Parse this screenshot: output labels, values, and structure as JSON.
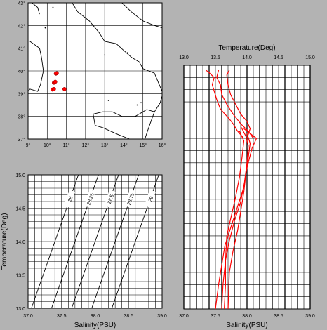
{
  "colors": {
    "background": "#b3b3b3",
    "plot_bg": "#ffffff",
    "profile": "#ff0000",
    "grid": "#000000"
  },
  "chart_data": [
    {
      "type": "map",
      "xlim": [
        9,
        16
      ],
      "ylim": [
        37,
        43
      ],
      "x_ticks": [
        "9°",
        "10°",
        "11°",
        "12°",
        "13°",
        "14°",
        "15°",
        "16°"
      ],
      "y_ticks": [
        "37°",
        "38°",
        "39°",
        "40°",
        "41°",
        "42°",
        "43°"
      ],
      "stations": [
        {
          "lon": 10.45,
          "lat": 39.88
        },
        {
          "lon": 10.5,
          "lat": 39.9
        },
        {
          "lon": 10.35,
          "lat": 39.48
        },
        {
          "lon": 10.42,
          "lat": 39.52
        },
        {
          "lon": 10.28,
          "lat": 39.18
        },
        {
          "lon": 10.35,
          "lat": 39.2
        },
        {
          "lon": 10.9,
          "lat": 39.2
        }
      ]
    },
    {
      "type": "line",
      "title": "Temperature(Deg)",
      "xlabel": "Salinity(PSU)",
      "xlim": [
        13.0,
        15.0
      ],
      "secondary_xlim": [
        37.0,
        39.0
      ],
      "top_ticks": [
        "13.0",
        "13.5",
        "14.0",
        "14.5",
        "15.0"
      ],
      "bottom_ticks": [
        "37.0",
        "37.5",
        "38.0",
        "38.5",
        "39.0"
      ],
      "depth_range": [
        0,
        1
      ],
      "series": [
        {
          "temp_profile": [
            [
              13.35,
              0.02
            ],
            [
              13.4,
              0.03
            ],
            [
              13.48,
              0.05
            ],
            [
              13.45,
              0.08
            ],
            [
              13.52,
              0.14
            ],
            [
              13.58,
              0.18
            ],
            [
              13.65,
              0.2
            ],
            [
              13.72,
              0.22
            ],
            [
              13.78,
              0.24
            ],
            [
              13.85,
              0.27
            ],
            [
              13.95,
              0.3
            ]
          ]
        },
        {
          "temp_profile": [
            [
              13.55,
              0.02
            ],
            [
              13.52,
              0.05
            ],
            [
              13.58,
              0.08
            ],
            [
              13.6,
              0.12
            ],
            [
              13.68,
              0.16
            ],
            [
              13.78,
              0.2
            ],
            [
              13.9,
              0.24
            ],
            [
              14.02,
              0.27
            ],
            [
              14.1,
              0.3
            ]
          ]
        },
        {
          "temp_profile": [
            [
              13.72,
              0.02
            ],
            [
              13.68,
              0.04
            ],
            [
              13.7,
              0.08
            ],
            [
              13.74,
              0.12
            ],
            [
              13.82,
              0.16
            ],
            [
              13.9,
              0.2
            ],
            [
              14.0,
              0.23
            ],
            [
              14.05,
              0.26
            ],
            [
              14.0,
              0.3
            ]
          ]
        },
        {
          "sal_profile": [
            [
              37.95,
              0.26
            ],
            [
              38.05,
              0.28
            ],
            [
              38.15,
              0.3
            ],
            [
              38.08,
              0.34
            ],
            [
              38.0,
              0.42
            ],
            [
              37.95,
              0.5
            ],
            [
              37.85,
              0.58
            ],
            [
              37.75,
              0.66
            ],
            [
              37.65,
              0.74
            ],
            [
              37.6,
              0.82
            ],
            [
              37.55,
              0.9
            ],
            [
              37.5,
              1.0
            ]
          ]
        },
        {
          "sal_profile": [
            [
              37.9,
              0.25
            ],
            [
              37.98,
              0.29
            ],
            [
              38.02,
              0.33
            ],
            [
              38.0,
              0.4
            ],
            [
              37.96,
              0.48
            ],
            [
              37.9,
              0.56
            ],
            [
              37.8,
              0.64
            ],
            [
              37.72,
              0.72
            ],
            [
              37.66,
              0.8
            ],
            [
              37.62,
              0.9
            ],
            [
              37.6,
              1.0
            ]
          ]
        },
        {
          "sal_profile": [
            [
              37.88,
              0.27
            ],
            [
              37.95,
              0.31
            ],
            [
              37.92,
              0.38
            ],
            [
              37.88,
              0.46
            ],
            [
              37.82,
              0.54
            ],
            [
              37.75,
              0.62
            ],
            [
              37.68,
              0.7
            ],
            [
              37.66,
              0.8
            ],
            [
              37.66,
              0.9
            ],
            [
              37.64,
              1.0
            ]
          ]
        },
        {
          "sal_profile": [
            [
              38.0,
              0.28
            ],
            [
              38.05,
              0.32
            ],
            [
              38.02,
              0.38
            ],
            [
              37.98,
              0.45
            ],
            [
              37.95,
              0.52
            ],
            [
              37.9,
              0.6
            ],
            [
              37.85,
              0.68
            ],
            [
              37.78,
              0.76
            ],
            [
              37.72,
              0.85
            ],
            [
              37.7,
              1.0
            ]
          ]
        }
      ]
    },
    {
      "type": "line",
      "xlabel": "Salinity(PSU)",
      "ylabel": "Temperature(Deg)",
      "xlim": [
        37.0,
        39.0
      ],
      "ylim": [
        13.0,
        15.0
      ],
      "x_ticks": [
        "37.0",
        "37.5",
        "38.0",
        "38.5",
        "39.0"
      ],
      "y_ticks": [
        "13.0",
        "13.5",
        "14.0",
        "14.5",
        "15.0"
      ],
      "isopycnals": [
        {
          "label": "28",
          "x0": 37.05,
          "x1": 37.75
        },
        {
          "label": "28.25",
          "x0": 37.35,
          "x1": 38.05
        },
        {
          "label": "28.5",
          "x0": 37.65,
          "x1": 38.35
        },
        {
          "label": "28.75",
          "x0": 37.95,
          "x1": 38.65
        },
        {
          "label": "29",
          "x0": 38.25,
          "x1": 38.95
        }
      ]
    }
  ]
}
